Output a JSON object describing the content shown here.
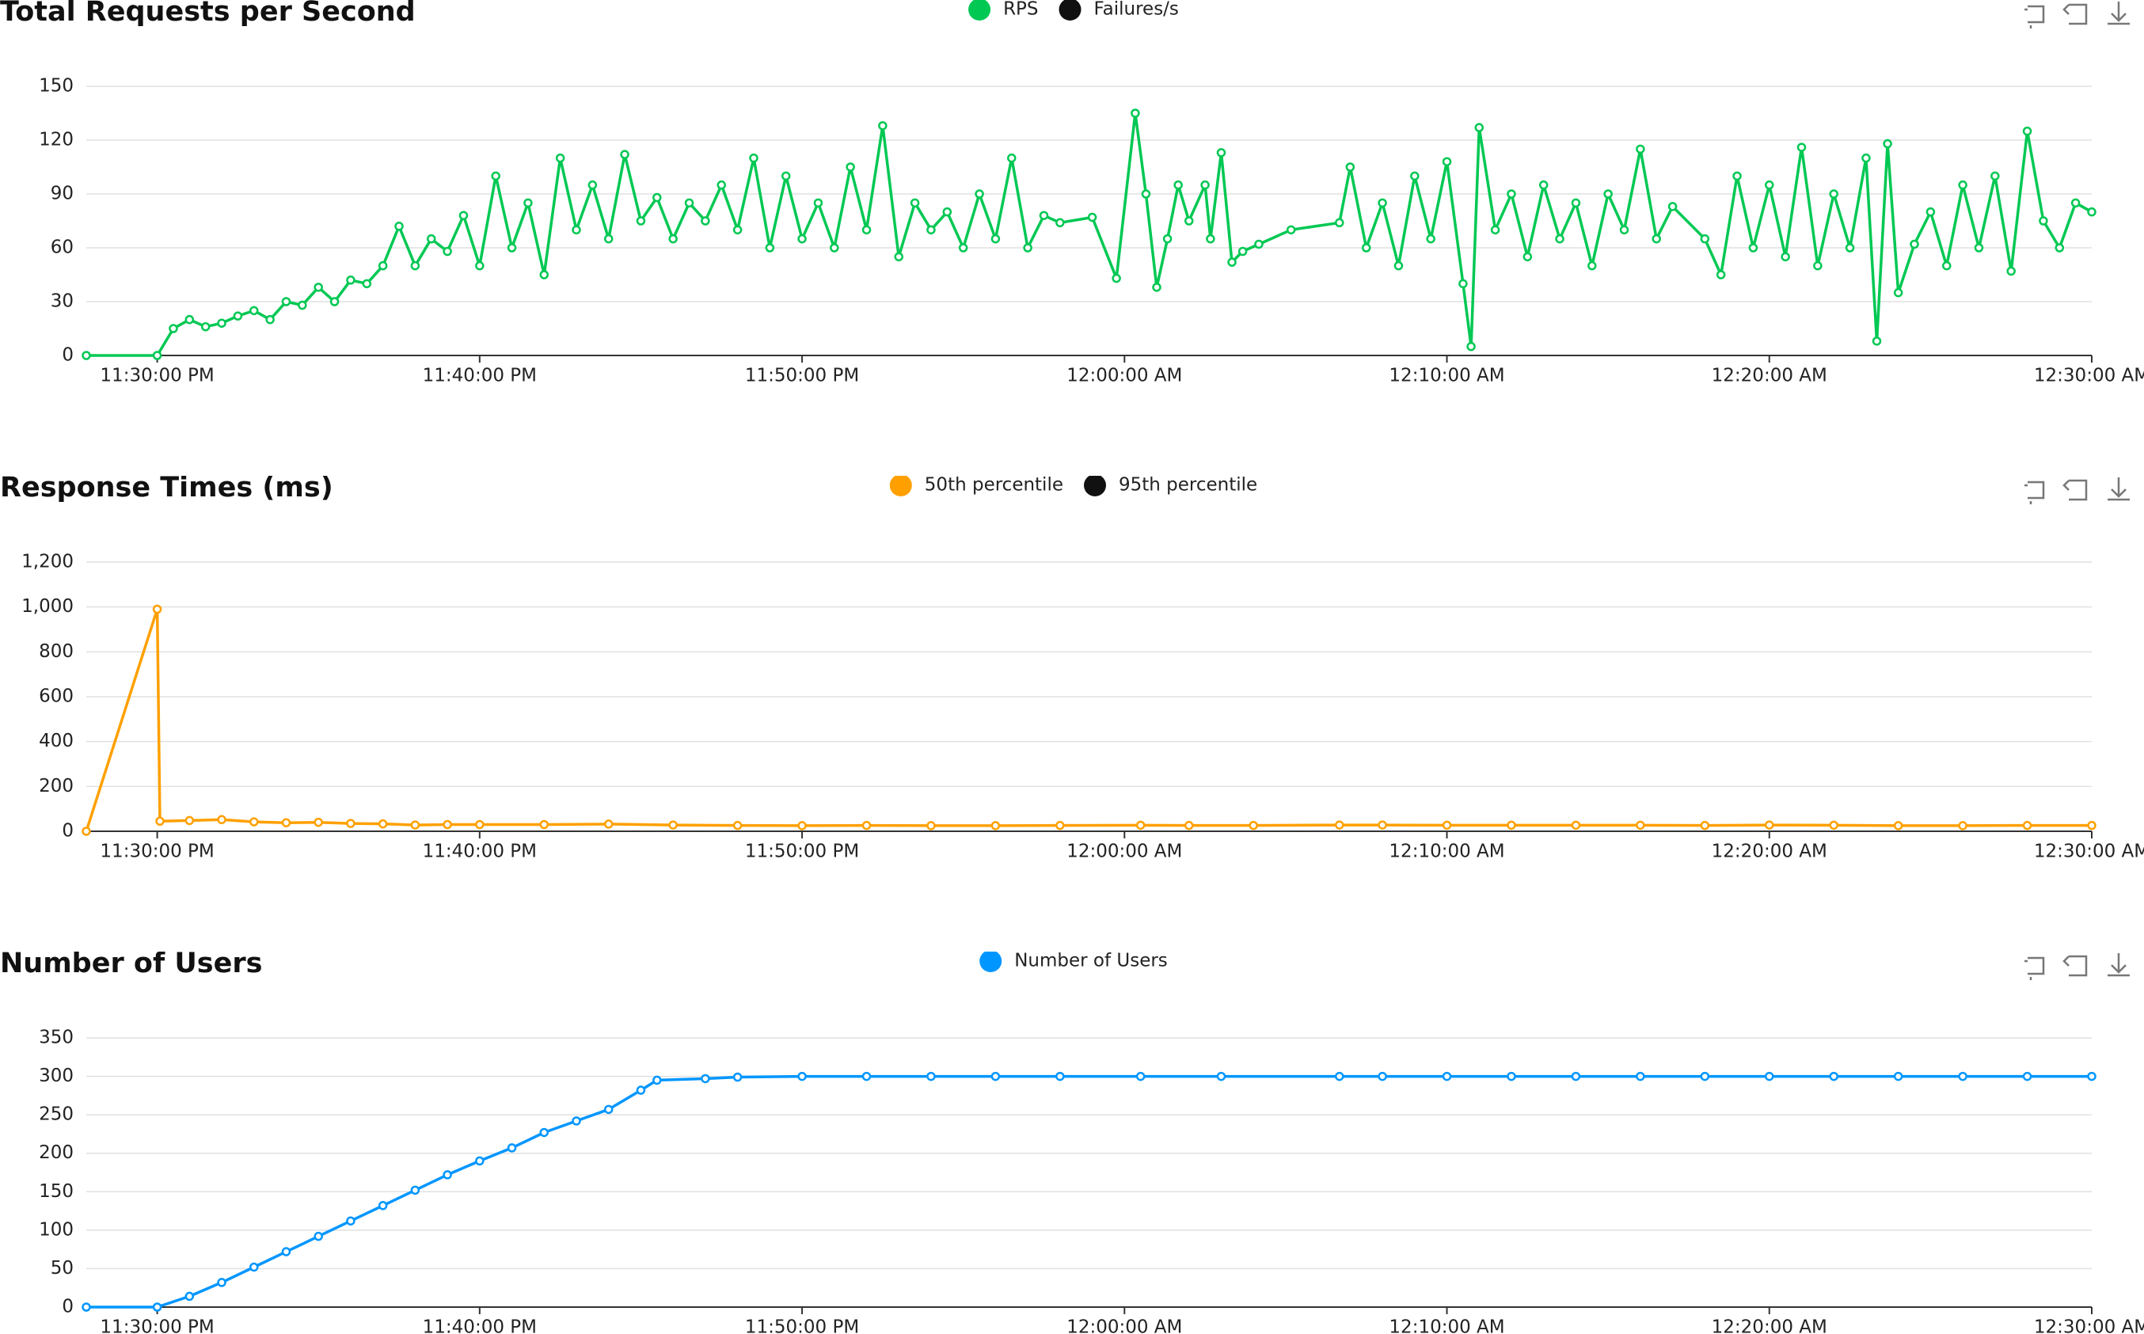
{
  "chart_data": [
    {
      "type": "line",
      "title": "Total Requests per Second",
      "xlim": [
        "11:27:48 PM",
        "12:30:00 AM"
      ],
      "xticks": [
        "11:30:00 PM",
        "11:40:00 PM",
        "11:50:00 PM",
        "12:00:00 AM",
        "12:10:00 AM",
        "12:20:00 AM",
        "12:30:00 AM"
      ],
      "ylim": [
        0,
        150
      ],
      "yticks": [
        0,
        30,
        60,
        90,
        120,
        150
      ],
      "grid": true,
      "series": [
        {
          "name": "RPS",
          "color": "#00c853",
          "x": [
            "11:27:48 PM",
            "11:30:00 PM",
            "11:30:30 PM",
            "11:31:00 PM",
            "11:31:30 PM",
            "11:32:00 PM",
            "11:32:30 PM",
            "11:33:00 PM",
            "11:33:30 PM",
            "11:34:00 PM",
            "11:34:30 PM",
            "11:35:00 PM",
            "11:35:30 PM",
            "11:36:00 PM",
            "11:36:30 PM",
            "11:37:00 PM",
            "11:37:30 PM",
            "11:38:00 PM",
            "11:38:30 PM",
            "11:39:00 PM",
            "11:39:30 PM",
            "11:40:00 PM",
            "11:40:30 PM",
            "11:41:00 PM",
            "11:41:30 PM",
            "11:42:00 PM",
            "11:42:30 PM",
            "11:43:00 PM",
            "11:43:30 PM",
            "11:44:00 PM",
            "11:44:30 PM",
            "11:45:00 PM",
            "11:45:30 PM",
            "11:46:00 PM",
            "11:46:30 PM",
            "11:47:00 PM",
            "11:47:30 PM",
            "11:48:00 PM",
            "11:48:30 PM",
            "11:49:00 PM",
            "11:49:30 PM",
            "11:50:00 PM",
            "11:50:30 PM",
            "11:51:00 PM",
            "11:51:30 PM",
            "11:52:00 PM",
            "11:52:30 PM",
            "11:53:00 PM",
            "11:53:30 PM",
            "11:54:00 PM",
            "11:54:30 PM",
            "11:55:00 PM",
            "11:55:30 PM",
            "11:56:00 PM",
            "11:56:30 PM",
            "11:57:00 PM",
            "11:57:30 PM",
            "11:58:00 PM",
            "11:59:00 PM",
            "11:59:45 PM",
            "12:00:20 AM",
            "12:00:40 AM",
            "12:01:00 AM",
            "12:01:20 AM",
            "12:01:40 AM",
            "12:02:00 AM",
            "12:02:30 AM",
            "12:02:40 AM",
            "12:03:00 AM",
            "12:03:20 AM",
            "12:03:40 AM",
            "12:04:10 AM",
            "12:05:10 AM",
            "12:06:40 AM",
            "12:07:00 AM",
            "12:07:30 AM",
            "12:08:00 AM",
            "12:08:30 AM",
            "12:09:00 AM",
            "12:09:30 AM",
            "12:10:00 AM",
            "12:10:30 AM",
            "12:10:45 AM",
            "12:11:00 AM",
            "12:11:30 AM",
            "12:12:00 AM",
            "12:12:30 AM",
            "12:13:00 AM",
            "12:13:30 AM",
            "12:14:00 AM",
            "12:14:30 AM",
            "12:15:00 AM",
            "12:15:30 AM",
            "12:16:00 AM",
            "12:16:30 AM",
            "12:17:00 AM",
            "12:18:00 AM",
            "12:18:30 AM",
            "12:19:00 AM",
            "12:19:30 AM",
            "12:20:00 AM",
            "12:20:30 AM",
            "12:21:00 AM",
            "12:21:30 AM",
            "12:22:00 AM",
            "12:22:30 AM",
            "12:23:00 AM",
            "12:23:20 AM",
            "12:23:40 AM",
            "12:24:00 AM",
            "12:24:30 AM",
            "12:25:00 AM",
            "12:25:30 AM",
            "12:26:00 AM",
            "12:26:30 AM",
            "12:27:00 AM",
            "12:27:30 AM",
            "12:28:00 AM",
            "12:28:30 AM",
            "12:29:00 AM",
            "12:29:30 AM",
            "12:30:00 AM"
          ],
          "values": [
            0,
            0,
            15,
            20,
            16,
            18,
            22,
            25,
            20,
            30,
            28,
            38,
            30,
            42,
            40,
            50,
            72,
            50,
            65,
            58,
            78,
            50,
            100,
            60,
            85,
            45,
            110,
            70,
            95,
            65,
            112,
            75,
            88,
            65,
            85,
            75,
            95,
            70,
            110,
            60,
            100,
            65,
            85,
            60,
            105,
            70,
            128,
            55,
            85,
            70,
            80,
            60,
            90,
            65,
            110,
            60,
            78,
            74,
            77,
            43,
            135,
            90,
            38,
            65,
            95,
            75,
            95,
            65,
            113,
            52,
            58,
            62,
            70,
            74,
            105,
            60,
            85,
            50,
            100,
            65,
            108,
            40,
            5,
            127,
            70,
            90,
            55,
            95,
            65,
            85,
            50,
            90,
            70,
            115,
            65,
            83,
            65,
            45,
            100,
            60,
            95,
            55,
            116,
            50,
            90,
            60,
            110,
            8,
            118,
            35,
            62,
            80,
            50,
            95,
            60,
            100,
            47,
            125,
            75,
            60,
            85,
            80
          ]
        },
        {
          "name": "Failures/s",
          "color": "#111111",
          "x": [],
          "values": []
        }
      ]
    },
    {
      "type": "line",
      "title": "Response Times (ms)",
      "xlim": [
        "11:27:48 PM",
        "12:30:00 AM"
      ],
      "xticks": [
        "11:30:00 PM",
        "11:40:00 PM",
        "11:50:00 PM",
        "12:00:00 AM",
        "12:10:00 AM",
        "12:20:00 AM",
        "12:30:00 AM"
      ],
      "ylim": [
        0,
        1200
      ],
      "yticks": [
        0,
        200,
        400,
        600,
        800,
        {
          "value": 1000,
          "label": "1,000"
        },
        {
          "value": 1200,
          "label": "1,200"
        }
      ],
      "grid": true,
      "series": [
        {
          "name": "50th percentile",
          "color": "#ffa000",
          "x": [
            "11:27:48 PM",
            "11:30:00 PM",
            "11:30:05 PM",
            "11:31:00 PM",
            "11:32:00 PM",
            "11:33:00 PM",
            "11:34:00 PM",
            "11:35:00 PM",
            "11:36:00 PM",
            "11:37:00 PM",
            "11:38:00 PM",
            "11:39:00 PM",
            "11:40:00 PM",
            "11:42:00 PM",
            "11:44:00 PM",
            "11:46:00 PM",
            "11:48:00 PM",
            "11:50:00 PM",
            "11:52:00 PM",
            "11:54:00 PM",
            "11:56:00 PM",
            "11:58:00 PM",
            "12:00:30 AM",
            "12:02:00 AM",
            "12:04:00 AM",
            "12:06:40 AM",
            "12:08:00 AM",
            "12:10:00 AM",
            "12:12:00 AM",
            "12:14:00 AM",
            "12:16:00 AM",
            "12:18:00 AM",
            "12:20:00 AM",
            "12:22:00 AM",
            "12:24:00 AM",
            "12:26:00 AM",
            "12:28:00 AM",
            "12:30:00 AM"
          ],
          "values": [
            0,
            990,
            45,
            48,
            52,
            42,
            38,
            40,
            35,
            33,
            28,
            30,
            30,
            30,
            32,
            28,
            26,
            25,
            26,
            25,
            25,
            26,
            27,
            26,
            26,
            28,
            28,
            27,
            27,
            27,
            27,
            26,
            28,
            27,
            25,
            25,
            26,
            26
          ]
        },
        {
          "name": "95th percentile",
          "color": "#111111",
          "x": [],
          "values": []
        }
      ]
    },
    {
      "type": "line",
      "title": "Number of Users",
      "xlim": [
        "11:27:48 PM",
        "12:30:00 AM"
      ],
      "xticks": [
        "11:30:00 PM",
        "11:40:00 PM",
        "11:50:00 PM",
        "12:00:00 AM",
        "12:10:00 AM",
        "12:20:00 AM",
        "12:30:00 AM"
      ],
      "ylim": [
        0,
        350
      ],
      "yticks": [
        0,
        50,
        100,
        150,
        200,
        250,
        300,
        350
      ],
      "grid": true,
      "series": [
        {
          "name": "Number of Users",
          "color": "#0096ff",
          "x": [
            "11:27:48 PM",
            "11:30:00 PM",
            "11:31:00 PM",
            "11:32:00 PM",
            "11:33:00 PM",
            "11:34:00 PM",
            "11:35:00 PM",
            "11:36:00 PM",
            "11:37:00 PM",
            "11:38:00 PM",
            "11:39:00 PM",
            "11:40:00 PM",
            "11:41:00 PM",
            "11:42:00 PM",
            "11:43:00 PM",
            "11:44:00 PM",
            "11:45:00 PM",
            "11:45:30 PM",
            "11:47:00 PM",
            "11:48:00 PM",
            "11:50:00 PM",
            "11:52:00 PM",
            "11:54:00 PM",
            "11:56:00 PM",
            "11:58:00 PM",
            "12:00:30 AM",
            "12:03:00 AM",
            "12:06:40 AM",
            "12:08:00 AM",
            "12:10:00 AM",
            "12:12:00 AM",
            "12:14:00 AM",
            "12:16:00 AM",
            "12:18:00 AM",
            "12:20:00 AM",
            "12:22:00 AM",
            "12:24:00 AM",
            "12:26:00 AM",
            "12:28:00 AM",
            "12:30:00 AM"
          ],
          "values": [
            0,
            0,
            14,
            32,
            52,
            72,
            92,
            112,
            132,
            152,
            172,
            190,
            207,
            227,
            242,
            257,
            282,
            295,
            297,
            299,
            300,
            300,
            300,
            300,
            300,
            300,
            300,
            300,
            300,
            300,
            300,
            300,
            300,
            300,
            300,
            300,
            300,
            300,
            300,
            300
          ]
        }
      ]
    }
  ]
}
